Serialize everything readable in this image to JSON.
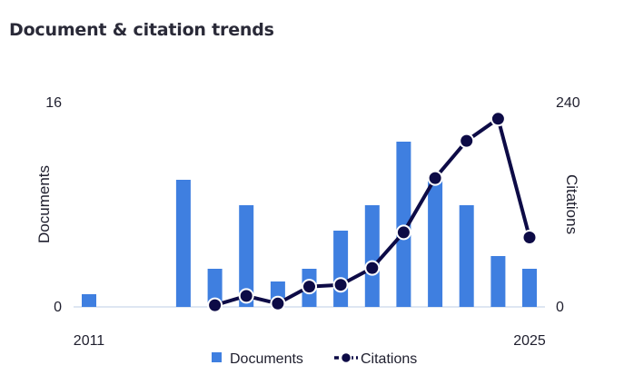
{
  "header": {
    "title": "Document & citation trends"
  },
  "colors": {
    "bar": "#3f7fe0",
    "line": "#0d0b46",
    "axis": "#c9d6ea",
    "text": "#1f1f2e"
  },
  "chart_data": {
    "type": "bar",
    "title": "Document & citation trends",
    "x": [
      2011,
      2012,
      2013,
      2014,
      2015,
      2016,
      2017,
      2018,
      2019,
      2020,
      2021,
      2022,
      2023,
      2024,
      2025
    ],
    "x_tick_labels": [
      "2011",
      "2025"
    ],
    "left_axis": {
      "label": "Documents",
      "range": [
        0,
        16
      ],
      "ticks": [
        "0",
        "16"
      ]
    },
    "right_axis": {
      "label": "Citations",
      "range": [
        0,
        240
      ],
      "ticks": [
        "0",
        "240"
      ]
    },
    "series": [
      {
        "name": "Documents",
        "type": "bar",
        "axis": "left",
        "values": [
          1,
          0,
          0,
          10,
          3,
          8,
          2,
          3,
          6,
          8,
          13,
          10,
          8,
          4,
          3
        ]
      },
      {
        "name": "Citations",
        "type": "line",
        "axis": "right",
        "values": [
          null,
          null,
          null,
          null,
          2,
          13,
          4,
          24,
          26,
          46,
          88,
          152,
          196,
          222,
          82
        ]
      }
    ],
    "legend": {
      "position": "bottom",
      "items": [
        "Documents",
        "Citations"
      ]
    },
    "grid": false
  }
}
